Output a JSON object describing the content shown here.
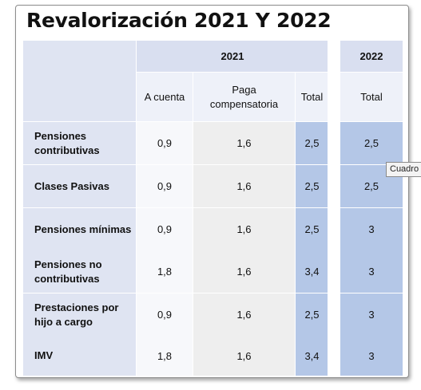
{
  "title": "Revalorización 2021 Y 2022",
  "header": {
    "year_2021": "2021",
    "year_2022": "2022",
    "col_a_cuenta": "A cuenta",
    "col_paga": "Paga compensatoria",
    "col_total_2021": "Total",
    "col_total_2022": "Total"
  },
  "rows": [
    {
      "label": "Pensiones contributivas",
      "a_cuenta": "0,9",
      "paga": "1,6",
      "total_2021": "2,5",
      "total_2022": "2,5"
    },
    {
      "label": "Clases Pasivas",
      "a_cuenta": "0,9",
      "paga": "1,6",
      "total_2021": "2,5",
      "total_2022": "2,5"
    },
    {
      "label": "Pensiones mínimas",
      "a_cuenta": "0,9",
      "paga": "1,6",
      "total_2021": "2,5",
      "total_2022": "3"
    },
    {
      "label": "Pensiones no contributivas",
      "a_cuenta": "1,8",
      "paga": "1,6",
      "total_2021": "3,4",
      "total_2022": "3"
    },
    {
      "label": "Prestaciones por hijo a cargo",
      "a_cuenta": "0,9",
      "paga": "1,6",
      "total_2021": "2,5",
      "total_2022": "3"
    },
    {
      "label": "IMV",
      "a_cuenta": "1,8",
      "paga": "1,6",
      "total_2021": "3,4",
      "total_2022": "3"
    }
  ],
  "tooltip": "Cuadro"
}
